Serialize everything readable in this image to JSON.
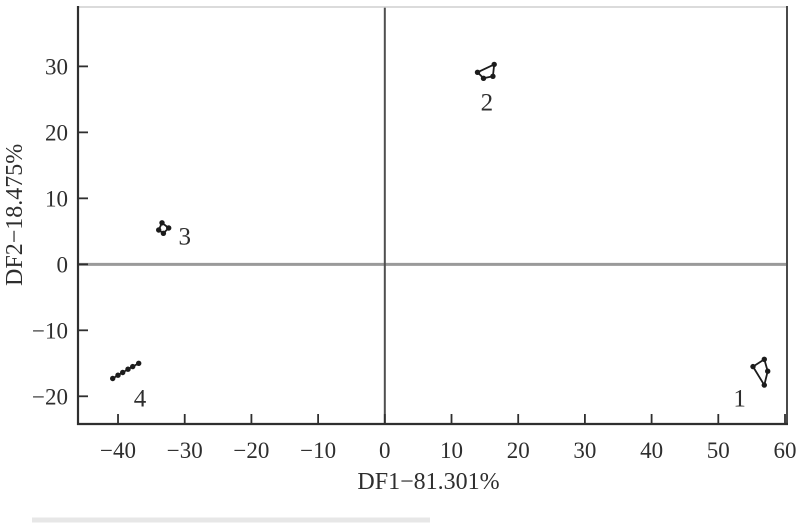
{
  "page": {
    "background": "#ffffff"
  },
  "chart_data": {
    "type": "scatter",
    "title": "",
    "xlabel": "DF1−81.301%",
    "ylabel": "DF2−18.475%",
    "xlim": [
      -46.0,
      60.3
    ],
    "ylim": [
      -24.2,
      39.0
    ],
    "x_ticks": [
      -40,
      -30,
      -20,
      -10,
      0,
      10,
      20,
      30,
      40,
      50,
      60
    ],
    "y_ticks": [
      30,
      20,
      10,
      0,
      -10,
      -20
    ],
    "grid": false,
    "legend": "none",
    "zero_lines": true,
    "series": [
      {
        "name": "group-1",
        "label": "1",
        "closed": true,
        "label_pos": [
          53.2,
          -20.3
        ],
        "points": [
          [
            56.9,
            -14.4
          ],
          [
            57.4,
            -16.2
          ],
          [
            56.9,
            -18.3
          ],
          [
            55.2,
            -15.5
          ]
        ]
      },
      {
        "name": "group-2",
        "label": "2",
        "closed": true,
        "label_pos": [
          15.3,
          24.5
        ],
        "points": [
          [
            13.9,
            29.1
          ],
          [
            16.4,
            30.3
          ],
          [
            16.2,
            28.5
          ],
          [
            14.8,
            28.2
          ]
        ]
      },
      {
        "name": "group-3",
        "label": "3",
        "closed": true,
        "label_pos": [
          -30.0,
          4.2
        ],
        "points": [
          [
            -33.4,
            6.3
          ],
          [
            -32.4,
            5.5
          ],
          [
            -33.2,
            4.7
          ],
          [
            -33.9,
            5.2
          ]
        ]
      },
      {
        "name": "group-4",
        "label": "4",
        "closed": false,
        "label_pos": [
          -36.7,
          -20.3
        ],
        "points": [
          [
            -40.8,
            -17.3
          ],
          [
            -40.0,
            -16.8
          ],
          [
            -39.3,
            -16.4
          ],
          [
            -38.5,
            -15.9
          ],
          [
            -37.8,
            -15.5
          ],
          [
            -36.9,
            -15.0
          ]
        ]
      }
    ],
    "colors": {
      "marker": "#1c1c1c",
      "axis": "#2f2f2f",
      "frame_top": "#cfcfcf",
      "frame_right": "#4a4a4a",
      "zero_h": "#9a9a9a",
      "zero_v": "#4f4f4f",
      "text": "#2e2e2e"
    }
  }
}
